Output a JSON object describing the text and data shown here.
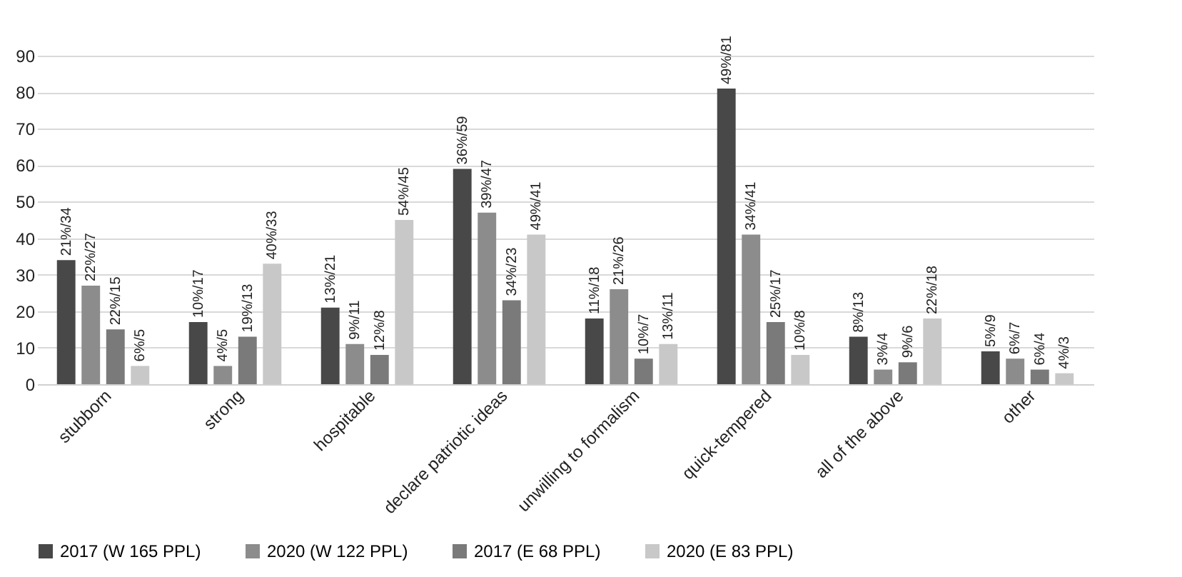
{
  "chart_data": {
    "type": "bar",
    "categories": [
      "stubborn",
      "strong",
      "hospitable",
      "declare patriotic ideas",
      "unwilling to formalism",
      "quick-tempered",
      "all of the above",
      "other"
    ],
    "series": [
      {
        "name": "2017 (W 165 PPL)",
        "color": "#484848",
        "values": [
          34,
          17,
          21,
          59,
          18,
          81,
          13,
          9
        ],
        "value_labels": [
          "21%/34",
          "10%/17",
          "13%/21",
          "36%/59",
          "11%/18",
          "49%/81",
          "8%/13",
          "5%/9"
        ]
      },
      {
        "name": "2020 (W 122 PPL)",
        "color": "#8c8c8c",
        "values": [
          27,
          5,
          11,
          47,
          26,
          41,
          4,
          7
        ],
        "value_labels": [
          "22%/27",
          "4%/5",
          "9%/11",
          "39%/47",
          "21%/26",
          "34%/41",
          "3%/4",
          "6%/7"
        ]
      },
      {
        "name": "2017 (E 68 PPL)",
        "color": "#7a7a7a",
        "values": [
          15,
          13,
          8,
          23,
          7,
          17,
          6,
          4
        ],
        "value_labels": [
          "22%/15",
          "19%/13",
          "12%/8",
          "34%/23",
          "10%/7",
          "25%/17",
          "9%/6",
          "6%/4"
        ]
      },
      {
        "name": "2020 (E 83 PPL)",
        "color": "#c8c8c8",
        "values": [
          5,
          33,
          45,
          41,
          11,
          8,
          18,
          3
        ],
        "value_labels": [
          "6%/5",
          "40%/33",
          "54%/45",
          "49%/41",
          "13%/11",
          "10%/8",
          "22%/18",
          "4%/3"
        ]
      }
    ],
    "ylim": [
      0,
      90
    ],
    "yticks": [
      0,
      10,
      20,
      30,
      40,
      50,
      60,
      70,
      80,
      90
    ],
    "grid": "y",
    "legend": "bottom"
  }
}
